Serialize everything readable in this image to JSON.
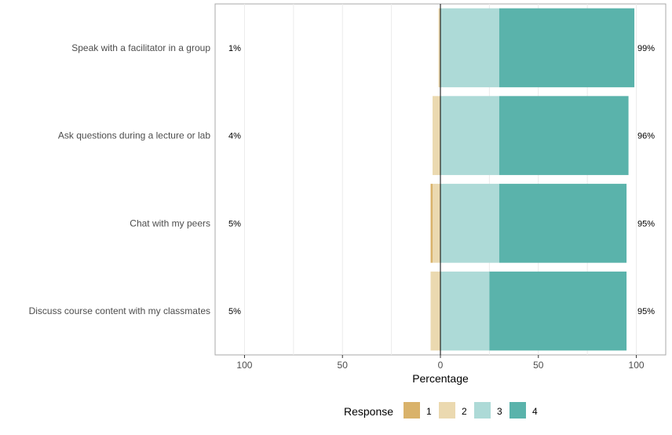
{
  "chart_data": {
    "type": "bar",
    "orientation": "horizontal",
    "layout": "diverging-stacked",
    "categories": [
      "Speak with a facilitator in a group",
      "Ask questions during a lecture or lab",
      "Chat with my peers",
      "Discuss course content with my classmates"
    ],
    "series": [
      {
        "name": "1",
        "color": "#D9B26A",
        "values": [
          0,
          0,
          1,
          0
        ]
      },
      {
        "name": "2",
        "color": "#EBD9B0",
        "values": [
          1,
          4,
          4,
          5
        ]
      },
      {
        "name": "3",
        "color": "#ADDAD7",
        "values": [
          30,
          30,
          30,
          25
        ]
      },
      {
        "name": "4",
        "color": "#5AB3AB",
        "values": [
          69,
          66,
          65,
          70
        ]
      }
    ],
    "left_labels": [
      "1%",
      "4%",
      "5%",
      "5%"
    ],
    "right_labels": [
      "99%",
      "96%",
      "95%",
      "95%"
    ],
    "xlabel": "Percentage",
    "ylabel": "",
    "xlim": [
      -115,
      115
    ],
    "xticks": [
      -100,
      -50,
      0,
      50,
      100
    ],
    "xtick_labels": [
      "100",
      "50",
      "0",
      "50",
      "100"
    ],
    "legend_title": "Response",
    "legend_position": "bottom",
    "grid": true
  }
}
